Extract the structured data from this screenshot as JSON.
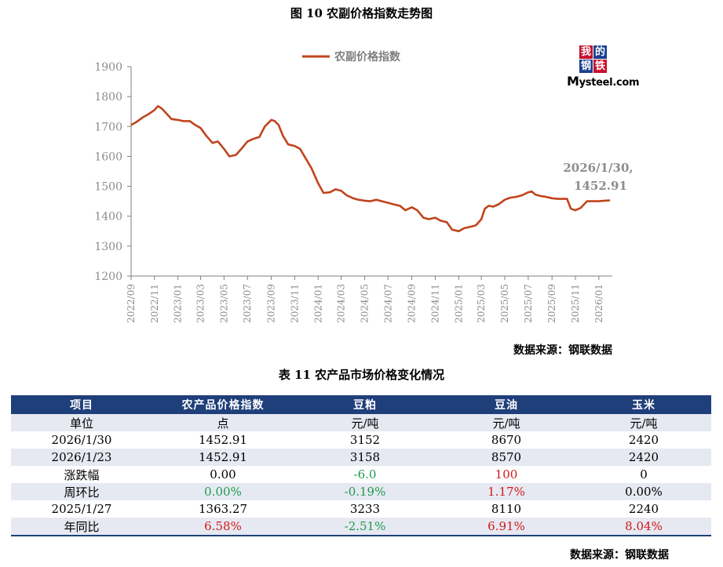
{
  "figure": {
    "title": "图 10 农副价格指数走势图",
    "source": "数据来源：钢联数据",
    "annotation_line1": "2026/1/30,",
    "annotation_line2": "1452.91"
  },
  "logo": {
    "chars": [
      "我",
      "的",
      "钢",
      "铁"
    ],
    "word_prefix": "M",
    "word_rest": "ysteel.com"
  },
  "colors": {
    "line": "#c0441c",
    "header_bg": "#1f3f7a",
    "row_alt": "#e6e9f2",
    "negative": "#1e9b4b",
    "positive": "#d11919",
    "axis": "#7f7f7f",
    "tick_text": "#8c8c8c"
  },
  "chart_data": {
    "type": "line",
    "title": "图 10 农副价格指数走势图",
    "legend_position": "top-center",
    "grid": false,
    "ylim": [
      1200,
      1900
    ],
    "yticks": [
      1200,
      1300,
      1400,
      1500,
      1600,
      1700,
      1800,
      1900
    ],
    "xlim": [
      "2022/09",
      "2026/02"
    ],
    "xticks": [
      "2022/09",
      "2022/11",
      "2023/01",
      "2023/03",
      "2023/05",
      "2023/07",
      "2023/09",
      "2023/11",
      "2024/01",
      "2024/03",
      "2024/05",
      "2024/07",
      "2024/09",
      "2024/11",
      "2025/01",
      "2025/03",
      "2025/05",
      "2025/07",
      "2025/09",
      "2025/11",
      "2026/01"
    ],
    "series": [
      {
        "name": "农副价格指数",
        "x": [
          "2022-09-01",
          "2022-09-15",
          "2022-10-01",
          "2022-10-15",
          "2022-11-01",
          "2022-11-10",
          "2022-11-20",
          "2022-12-01",
          "2022-12-15",
          "2023-01-01",
          "2023-01-15",
          "2023-02-01",
          "2023-02-15",
          "2023-03-01",
          "2023-03-15",
          "2023-04-01",
          "2023-04-15",
          "2023-05-01",
          "2023-05-15",
          "2023-06-01",
          "2023-06-15",
          "2023-07-01",
          "2023-07-15",
          "2023-08-01",
          "2023-08-15",
          "2023-09-01",
          "2023-09-10",
          "2023-09-20",
          "2023-10-01",
          "2023-10-15",
          "2023-11-01",
          "2023-11-15",
          "2023-12-01",
          "2023-12-15",
          "2024-01-01",
          "2024-01-15",
          "2024-02-01",
          "2024-02-15",
          "2024-03-01",
          "2024-03-15",
          "2024-04-01",
          "2024-04-15",
          "2024-05-01",
          "2024-05-15",
          "2024-06-01",
          "2024-06-15",
          "2024-07-01",
          "2024-07-15",
          "2024-08-01",
          "2024-08-15",
          "2024-09-01",
          "2024-09-15",
          "2024-10-01",
          "2024-10-15",
          "2024-11-01",
          "2024-11-15",
          "2024-12-01",
          "2024-12-15",
          "2025-01-01",
          "2025-01-15",
          "2025-02-01",
          "2025-02-15",
          "2025-03-01",
          "2025-03-10",
          "2025-03-20",
          "2025-04-01",
          "2025-04-15",
          "2025-05-01",
          "2025-05-15",
          "2025-06-01",
          "2025-06-15",
          "2025-07-01",
          "2025-07-10",
          "2025-07-20",
          "2025-08-01",
          "2025-08-15",
          "2025-09-01",
          "2025-09-15",
          "2025-10-01",
          "2025-10-10",
          "2025-10-20",
          "2025-11-01",
          "2025-11-15",
          "2025-12-01",
          "2025-12-15",
          "2026-01-01",
          "2026-01-15",
          "2026-01-30"
        ],
        "y": [
          1705,
          1715,
          1730,
          1740,
          1755,
          1768,
          1760,
          1745,
          1725,
          1722,
          1718,
          1718,
          1705,
          1695,
          1670,
          1645,
          1650,
          1625,
          1600,
          1605,
          1625,
          1650,
          1658,
          1665,
          1700,
          1722,
          1718,
          1705,
          1670,
          1640,
          1635,
          1625,
          1590,
          1560,
          1510,
          1478,
          1480,
          1490,
          1485,
          1470,
          1460,
          1455,
          1452,
          1450,
          1455,
          1450,
          1445,
          1440,
          1435,
          1420,
          1430,
          1420,
          1395,
          1390,
          1395,
          1385,
          1380,
          1355,
          1350,
          1360,
          1365,
          1370,
          1390,
          1425,
          1435,
          1432,
          1440,
          1455,
          1462,
          1465,
          1470,
          1480,
          1483,
          1472,
          1468,
          1465,
          1460,
          1458,
          1458,
          1458,
          1425,
          1420,
          1428,
          1450,
          1450,
          1450,
          1452,
          1452.91
        ]
      }
    ],
    "annotation": {
      "x": "2026-01-30",
      "y": 1452.91,
      "text": "2026/1/30, 1452.91"
    }
  },
  "table": {
    "title": "表 11 农产品市场价格变化情况",
    "headers": [
      "项目",
      "农产品价格指数",
      "豆粕",
      "豆油",
      "玉米"
    ],
    "rows": [
      {
        "label": "单位",
        "c1": "点",
        "c2": "元/吨",
        "c3": "元/吨",
        "c4": "元/吨"
      },
      {
        "label": "2026/1/30",
        "c1": "1452.91",
        "c2": "3152",
        "c3": "8670",
        "c4": "2420"
      },
      {
        "label": "2026/1/23",
        "c1": "1452.91",
        "c2": "3158",
        "c3": "8570",
        "c4": "2420"
      },
      {
        "label": "涨跌幅",
        "c1": "0.00",
        "c2": "-6.0",
        "c3": "100",
        "c4": "0"
      },
      {
        "label": "周环比",
        "c1": "0.00%",
        "c2": "-0.19%",
        "c3": "1.17%",
        "c4": "0.00%"
      },
      {
        "label": "2025/1/27",
        "c1": "1363.27",
        "c2": "3233",
        "c3": "8110",
        "c4": "2240"
      },
      {
        "label": "年同比",
        "c1": "6.58%",
        "c2": "-2.51%",
        "c3": "6.91%",
        "c4": "8.04%"
      }
    ],
    "source": "数据来源：钢联数据"
  }
}
